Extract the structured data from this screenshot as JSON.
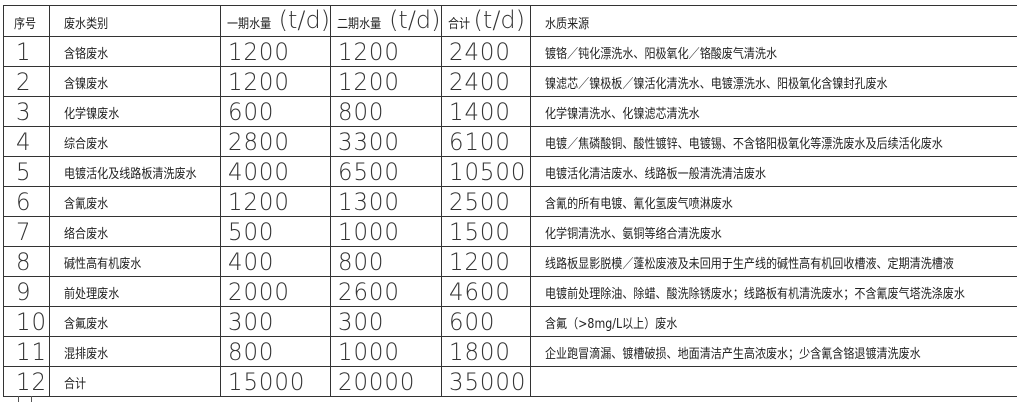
{
  "header": {
    "no": "序号",
    "type": "废水类别",
    "phase1": {
      "cn": "一期水量",
      "unit": "(t/d)"
    },
    "phase2": {
      "cn": "二期水量",
      "unit": "(t/d)"
    },
    "total": {
      "cn": "合计",
      "unit": "(t/d)"
    },
    "source": "水质来源"
  },
  "rows": [
    {
      "no": "1",
      "type": "含铬废水",
      "phase1": "1200",
      "phase2": "1200",
      "total": "2400",
      "source": "镀铬／钝化漂洗水、阳极氧化／铬酸废气清洗水"
    },
    {
      "no": "2",
      "type": "含镍废水",
      "phase1": "1200",
      "phase2": "1200",
      "total": "2400",
      "source": "镍滤芯／镍极板／镍活化清洗水、电镀漂洗水、阳极氧化含镍封孔废水"
    },
    {
      "no": "3",
      "type": "化学镍废水",
      "phase1": "600",
      "phase2": "800",
      "total": "1400",
      "source": "化学镍清洗水、化镍滤芯清洗水"
    },
    {
      "no": "4",
      "type": "综合废水",
      "phase1": "2800",
      "phase2": "3300",
      "total": "6100",
      "source": "电镀／焦磷酸铜、酸性镀锌、电镀锡、不含铬阳极氧化等漂洗废水及后续活化废水"
    },
    {
      "no": "5",
      "type": "电镀活化及线路板清洗废水",
      "phase1": "4000",
      "phase2": "6500",
      "total": "10500",
      "source": "电镀活化清洁废水、线路板一般清洗清洁废水"
    },
    {
      "no": "6",
      "type": "含氰废水",
      "phase1": "1200",
      "phase2": "1300",
      "total": "2500",
      "source": "含氰的所有电镀、氰化氢废气喷淋废水"
    },
    {
      "no": "7",
      "type": "络合废水",
      "phase1": "500",
      "phase2": "1000",
      "total": "1500",
      "source": "化学铜清洗水、氨铜等络合清洗废水"
    },
    {
      "no": "8",
      "type": "碱性高有机废水",
      "phase1": "400",
      "phase2": "800",
      "total": "1200",
      "source": "线路板显影脱模／蓬松废液及未回用于生产线的碱性高有机回收槽液、定期清洗槽液"
    },
    {
      "no": "9",
      "type": "前处理废水",
      "phase1": "2000",
      "phase2": "2600",
      "total": "4600",
      "source": "电镀前处理除油、除蜡、酸洗除锈废水；线路板有机清洗废水；不含氰废气塔洗涤废水"
    },
    {
      "no": "10",
      "type": "含氟废水",
      "phase1": "300",
      "phase2": "300",
      "total": "600",
      "source": "含氟（>8mg/L以上）废水"
    },
    {
      "no": "11",
      "type": "混排废水",
      "phase1": "800",
      "phase2": "1000",
      "total": "1800",
      "source": "企业跑冒滴漏、镀槽破损、地面清洁产生高浓废水；少含氰含铬退镀清洗废水"
    },
    {
      "no": "12",
      "type": "合计",
      "phase1": "15000",
      "phase2": "20000",
      "total": "35000",
      "source": ""
    }
  ]
}
